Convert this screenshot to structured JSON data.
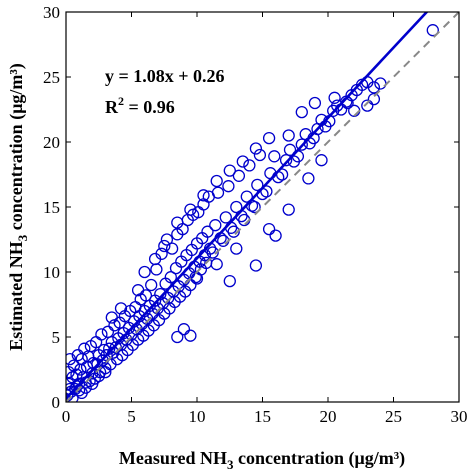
{
  "chart_data": {
    "type": "scatter",
    "xlim": [
      0,
      30
    ],
    "ylim": [
      0,
      30
    ],
    "x_ticks": [
      0,
      5,
      10,
      15,
      20,
      25,
      30
    ],
    "y_ticks": [
      0,
      5,
      10,
      15,
      20,
      25,
      30
    ],
    "x_tick_labels": [
      "0",
      "5",
      "10",
      "15",
      "20",
      "25",
      "30"
    ],
    "y_tick_labels": [
      "0",
      "5",
      "10",
      "15",
      "20",
      "25",
      "30"
    ],
    "xlabel": {
      "pre": "Measured NH",
      "sub": "3",
      "post": " concentration (μg/m³)"
    },
    "ylabel": {
      "pre": "Estimated NH",
      "sub": "3",
      "post": " concentration (μg/m³)"
    },
    "grid": false,
    "legend": "none",
    "annotations": {
      "equation": "y = 1.08x + 0.26",
      "r2_pre": "R",
      "r2_sup": "2",
      "r2_post": " = 0.96"
    },
    "fit_line": {
      "slope": 1.08,
      "intercept": 0.26
    },
    "reference_line": {
      "slope": 1,
      "intercept": 0
    },
    "colors": {
      "points": "#0000cc",
      "fit": "#0000cc",
      "reference": "#888888"
    },
    "series": [
      {
        "points": [
          [
            0.1,
            0.5
          ],
          [
            0.2,
            1.4
          ],
          [
            0.2,
            2.3
          ],
          [
            0.3,
            3.3
          ],
          [
            0.4,
            0.8
          ],
          [
            0.5,
            1.9
          ],
          [
            0.6,
            2.8
          ],
          [
            0.7,
            1.0
          ],
          [
            0.8,
            2.1
          ],
          [
            0.9,
            3.6
          ],
          [
            1.0,
            1.4
          ],
          [
            1.1,
            2.5
          ],
          [
            1.2,
            3.3
          ],
          [
            1.3,
            1.9
          ],
          [
            1.4,
            4.1
          ],
          [
            1.5,
            1.1
          ],
          [
            1.6,
            2.7
          ],
          [
            1.7,
            3.5
          ],
          [
            1.8,
            1.6
          ],
          [
            1.9,
            4.3
          ],
          [
            2.0,
            2.2
          ],
          [
            2.1,
            3.0
          ],
          [
            2.2,
            1.8
          ],
          [
            2.3,
            4.6
          ],
          [
            2.4,
            2.9
          ],
          [
            2.5,
            3.6
          ],
          [
            2.6,
            2.3
          ],
          [
            2.7,
            5.2
          ],
          [
            2.8,
            3.2
          ],
          [
            2.9,
            4.0
          ],
          [
            3.0,
            2.6
          ],
          [
            3.1,
            3.6
          ],
          [
            3.2,
            5.4
          ],
          [
            3.3,
            4.1
          ],
          [
            3.4,
            2.9
          ],
          [
            3.5,
            4.6
          ],
          [
            3.6,
            3.8
          ],
          [
            3.7,
            5.9
          ],
          [
            3.8,
            4.2
          ],
          [
            3.9,
            3.3
          ],
          [
            4.0,
            4.9
          ],
          [
            4.1,
            6.1
          ],
          [
            4.2,
            4.4
          ],
          [
            4.3,
            3.6
          ],
          [
            4.4,
            5.3
          ],
          [
            4.5,
            6.6
          ],
          [
            4.6,
            4.8
          ],
          [
            4.7,
            4.0
          ],
          [
            4.8,
            5.7
          ],
          [
            4.9,
            7.0
          ],
          [
            5.0,
            5.2
          ],
          [
            5.1,
            4.4
          ],
          [
            5.2,
            6.2
          ],
          [
            5.3,
            7.3
          ],
          [
            5.4,
            5.6
          ],
          [
            5.5,
            4.8
          ],
          [
            5.6,
            6.6
          ],
          [
            5.7,
            7.9
          ],
          [
            5.8,
            6.0
          ],
          [
            5.9,
            5.1
          ],
          [
            6.0,
            7.0
          ],
          [
            6.1,
            8.2
          ],
          [
            6.2,
            6.4
          ],
          [
            6.3,
            5.5
          ],
          [
            6.4,
            7.4
          ],
          [
            6.5,
            9.0
          ],
          [
            6.6,
            6.8
          ],
          [
            6.7,
            5.9
          ],
          [
            6.8,
            7.8
          ],
          [
            6.9,
            10.2
          ],
          [
            7.0,
            7.2
          ],
          [
            7.1,
            6.3
          ],
          [
            7.2,
            8.3
          ],
          [
            7.3,
            11.4
          ],
          [
            7.4,
            7.6
          ],
          [
            7.5,
            6.8
          ],
          [
            7.6,
            9.1
          ],
          [
            7.7,
            12.5
          ],
          [
            7.8,
            8.0
          ],
          [
            7.9,
            7.2
          ],
          [
            8.0,
            9.6
          ],
          [
            8.1,
            11.8
          ],
          [
            8.2,
            8.5
          ],
          [
            8.3,
            7.7
          ],
          [
            8.4,
            10.3
          ],
          [
            8.5,
            12.9
          ],
          [
            8.6,
            8.9
          ],
          [
            8.7,
            8.1
          ],
          [
            8.8,
            10.8
          ],
          [
            8.9,
            13.3
          ],
          [
            9.0,
            9.4
          ],
          [
            9.1,
            8.5
          ],
          [
            9.2,
            11.3
          ],
          [
            9.3,
            14.0
          ],
          [
            9.4,
            9.9
          ],
          [
            9.5,
            9.0
          ],
          [
            9.6,
            11.7
          ],
          [
            9.7,
            14.4
          ],
          [
            9.8,
            10.4
          ],
          [
            9.9,
            9.6
          ],
          [
            10.0,
            12.2
          ],
          [
            10.1,
            14.6
          ],
          [
            10.2,
            10.8
          ],
          [
            10.3,
            10.2
          ],
          [
            10.4,
            12.6
          ],
          [
            10.5,
            15.2
          ],
          [
            10.6,
            11.3
          ],
          [
            10.7,
            10.7
          ],
          [
            10.8,
            13.1
          ],
          [
            10.9,
            15.8
          ],
          [
            11.0,
            11.8
          ],
          [
            11.2,
            11.5
          ],
          [
            11.4,
            13.6
          ],
          [
            11.6,
            16.1
          ],
          [
            11.8,
            12.6
          ],
          [
            12.0,
            12.4
          ],
          [
            12.2,
            14.2
          ],
          [
            12.4,
            16.6
          ],
          [
            12.6,
            13.4
          ],
          [
            12.8,
            13.1
          ],
          [
            13.0,
            15.0
          ],
          [
            13.2,
            17.4
          ],
          [
            13.4,
            14.3
          ],
          [
            13.6,
            14.0
          ],
          [
            13.8,
            15.8
          ],
          [
            14.0,
            18.2
          ],
          [
            14.2,
            15.1
          ],
          [
            14.4,
            15.0
          ],
          [
            14.6,
            16.7
          ],
          [
            14.8,
            19.0
          ],
          [
            15.0,
            16.0
          ],
          [
            15.3,
            16.2
          ],
          [
            15.6,
            17.6
          ],
          [
            15.9,
            18.9
          ],
          [
            16.2,
            17.3
          ],
          [
            16.5,
            17.5
          ],
          [
            16.8,
            18.6
          ],
          [
            17.1,
            19.4
          ],
          [
            17.4,
            18.5
          ],
          [
            17.7,
            18.9
          ],
          [
            18.0,
            19.8
          ],
          [
            18.3,
            20.6
          ],
          [
            18.6,
            19.9
          ],
          [
            18.9,
            20.3
          ],
          [
            19.2,
            21.0
          ],
          [
            19.5,
            21.7
          ],
          [
            19.8,
            21.2
          ],
          [
            20.1,
            21.6
          ],
          [
            20.4,
            22.4
          ],
          [
            20.7,
            22.8
          ],
          [
            21.0,
            22.5
          ],
          [
            21.4,
            23.1
          ],
          [
            21.8,
            23.6
          ],
          [
            22.2,
            24.0
          ],
          [
            22.6,
            24.4
          ],
          [
            23.0,
            24.6
          ],
          [
            23.5,
            24.2
          ],
          [
            24.0,
            24.5
          ],
          [
            3.5,
            6.5
          ],
          [
            4.2,
            7.2
          ],
          [
            5.5,
            8.6
          ],
          [
            6.0,
            10.0
          ],
          [
            6.8,
            11.0
          ],
          [
            7.5,
            12.0
          ],
          [
            8.5,
            13.8
          ],
          [
            9.5,
            14.8
          ],
          [
            10.5,
            15.9
          ],
          [
            11.5,
            17.0
          ],
          [
            12.5,
            17.8
          ],
          [
            13.5,
            18.5
          ],
          [
            14.5,
            19.5
          ],
          [
            15.5,
            20.3
          ],
          [
            17.0,
            20.5
          ],
          [
            18.0,
            22.3
          ],
          [
            19.0,
            23.0
          ],
          [
            20.5,
            23.4
          ],
          [
            9.0,
            5.6
          ],
          [
            9.5,
            5.1
          ],
          [
            8.5,
            5.0
          ],
          [
            12.5,
            9.3
          ],
          [
            14.5,
            10.5
          ],
          [
            16.0,
            12.8
          ],
          [
            15.5,
            13.3
          ],
          [
            22.0,
            22.4
          ],
          [
            21.5,
            23.0
          ],
          [
            28.0,
            28.6
          ],
          [
            23.5,
            23.3
          ],
          [
            23.0,
            22.8
          ],
          [
            17.0,
            14.8
          ],
          [
            18.5,
            17.2
          ],
          [
            19.5,
            18.6
          ],
          [
            13.0,
            11.8
          ],
          [
            11.5,
            10.6
          ],
          [
            10.0,
            9.5
          ],
          [
            0.5,
            0.3
          ],
          [
            1.0,
            0.9
          ],
          [
            1.5,
            1.5
          ],
          [
            2.0,
            1.4
          ],
          [
            2.5,
            2.0
          ],
          [
            3.0,
            2.3
          ],
          [
            0.3,
            1.0
          ],
          [
            0.8,
            1.2
          ],
          [
            1.2,
            0.7
          ]
        ]
      }
    ]
  }
}
